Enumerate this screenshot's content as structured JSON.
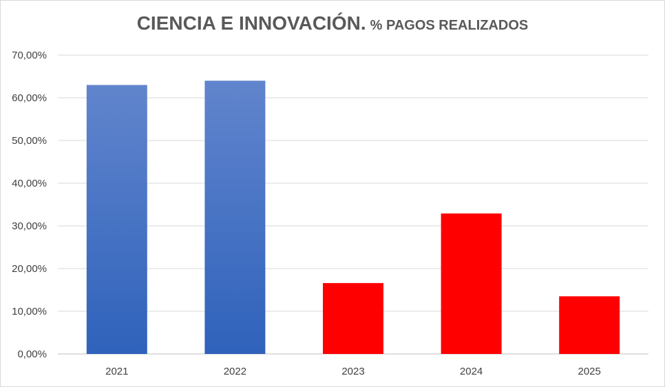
{
  "chart_data": {
    "type": "bar",
    "title": "CIENCIA E INNOVACIÓN.",
    "subtitle": "% PAGOS REALIZADOS",
    "categories": [
      "2021",
      "2022",
      "2023",
      "2024",
      "2025"
    ],
    "values": [
      63.0,
      64.0,
      16.6,
      32.9,
      13.5
    ],
    "bar_colors": [
      "#4472c4",
      "#4472c4",
      "#ff0000",
      "#ff0000",
      "#ff0000"
    ],
    "ylim": [
      0,
      70
    ],
    "yticks": [
      "0,00%",
      "10,00%",
      "20,00%",
      "30,00%",
      "40,00%",
      "50,00%",
      "60,00%",
      "70,00%"
    ],
    "grid": true,
    "legend": "none"
  }
}
